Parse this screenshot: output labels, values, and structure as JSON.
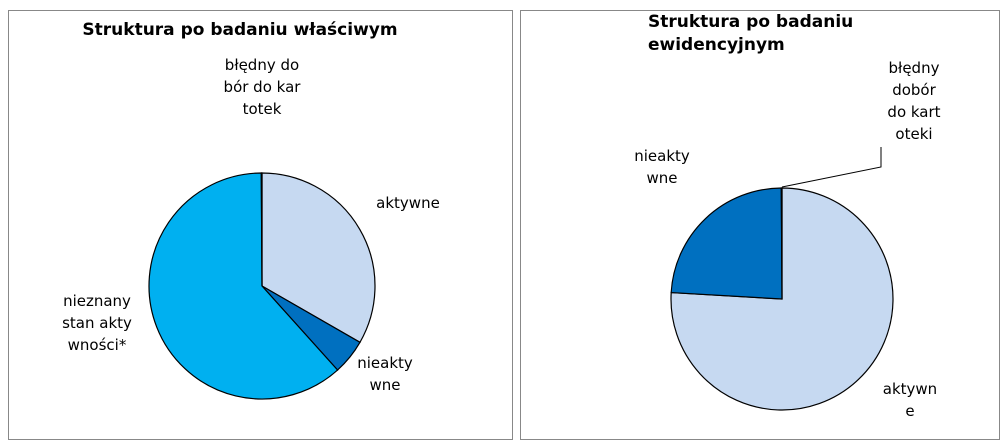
{
  "chart_data": [
    {
      "type": "pie",
      "title": "Struktura po badaniu właściwym",
      "categories": [
        "aktywne",
        "nieaktywne",
        "nieznany stan aktywności*",
        "błędny dobór do kartotek"
      ],
      "values": [
        33,
        5,
        61,
        0.1
      ],
      "value_labels": [
        "33%",
        "5%",
        "61%",
        "0,1%"
      ],
      "colors": [
        "#c6d9f1",
        "#0070c0",
        "#00b0f0",
        "#c6d9f1"
      ]
    },
    {
      "type": "pie",
      "title": "Struktura po badaniu ewidencyjnym",
      "categories": [
        "aktywne",
        "nieaktywne",
        "błędny dobór do kartoteki"
      ],
      "values": [
        76,
        24,
        0.1
      ],
      "value_labels": [
        "76%",
        "24%",
        "0,1%"
      ],
      "colors": [
        "#c6d9f1",
        "#0070c0",
        "#c6d9f1"
      ]
    }
  ]
}
